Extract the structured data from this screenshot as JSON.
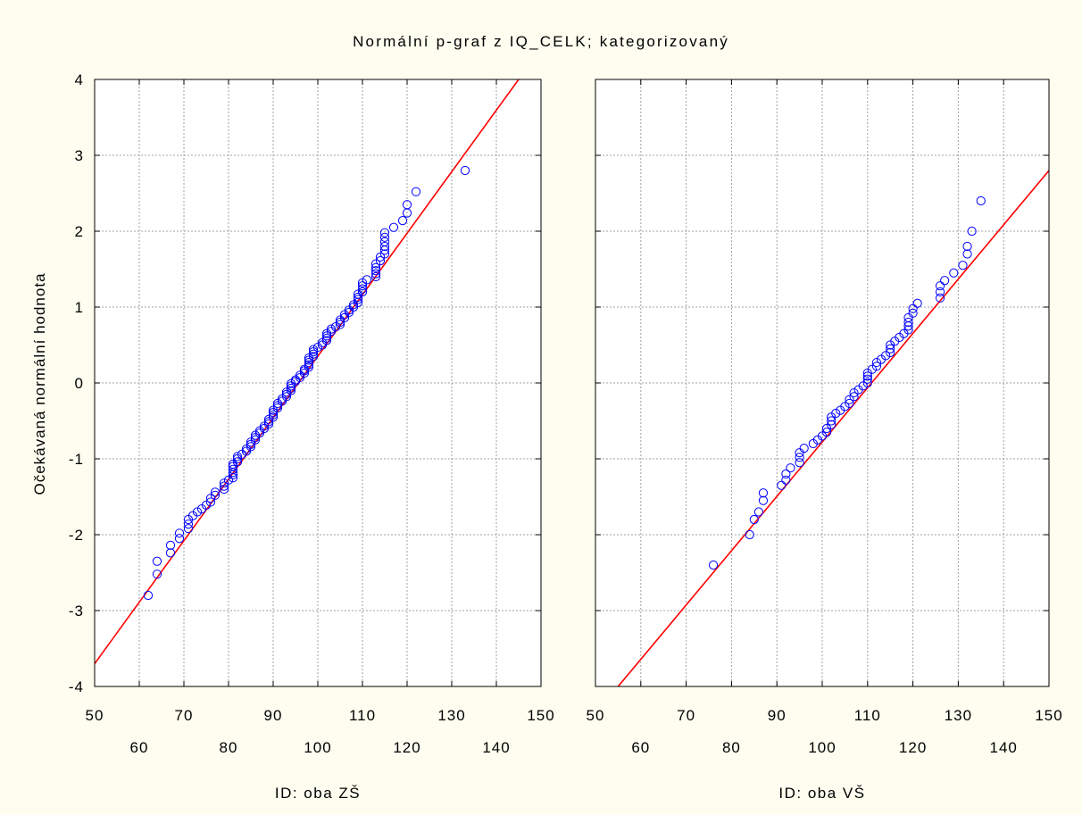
{
  "chart_data": {
    "type": "scatter",
    "title": "Normální p-graf z IQ_CELK; kategorizovaný",
    "ylabel": "Očekávaná normální hodnota",
    "ylim": [
      -4,
      4
    ],
    "y_ticks": [
      "4",
      "3",
      "2",
      "1",
      "0",
      "-1",
      "-2",
      "-3",
      "-4"
    ],
    "x_ticks_top": [
      "50",
      "70",
      "90",
      "110",
      "130",
      "150"
    ],
    "x_ticks_bottom": [
      "60",
      "80",
      "100",
      "120",
      "140"
    ],
    "colors": {
      "points": "#0000ff",
      "fit_line": "#ff0000",
      "grid": "#a0a0a0"
    },
    "grid": true,
    "panels": [
      {
        "xlabel": "ID: oba ZŠ",
        "xlim": [
          50,
          150
        ],
        "fit_line": [
          [
            50,
            -3.7
          ],
          [
            145,
            4.0
          ]
        ],
        "points": [
          [
            62,
            -2.8
          ],
          [
            64,
            -2.52
          ],
          [
            64,
            -2.35
          ],
          [
            67,
            -2.24
          ],
          [
            67,
            -2.14
          ],
          [
            69,
            -2.05
          ],
          [
            69,
            -1.98
          ],
          [
            71,
            -1.92
          ],
          [
            71,
            -1.86
          ],
          [
            71,
            -1.8
          ],
          [
            72,
            -1.75
          ],
          [
            73,
            -1.7
          ],
          [
            74,
            -1.66
          ],
          [
            75,
            -1.61
          ],
          [
            76,
            -1.57
          ],
          [
            76,
            -1.52
          ],
          [
            77,
            -1.48
          ],
          [
            77,
            -1.44
          ],
          [
            79,
            -1.4
          ],
          [
            79,
            -1.36
          ],
          [
            79,
            -1.32
          ],
          [
            80,
            -1.28
          ],
          [
            81,
            -1.25
          ],
          [
            81,
            -1.21
          ],
          [
            81,
            -1.18
          ],
          [
            81,
            -1.14
          ],
          [
            81,
            -1.1
          ],
          [
            81,
            -1.07
          ],
          [
            82,
            -1.04
          ],
          [
            82,
            -1.0
          ],
          [
            82,
            -0.97
          ],
          [
            83,
            -0.94
          ],
          [
            84,
            -0.9
          ],
          [
            84,
            -0.87
          ],
          [
            85,
            -0.84
          ],
          [
            85,
            -0.81
          ],
          [
            85,
            -0.78
          ],
          [
            86,
            -0.75
          ],
          [
            86,
            -0.72
          ],
          [
            86,
            -0.69
          ],
          [
            87,
            -0.66
          ],
          [
            87,
            -0.63
          ],
          [
            88,
            -0.6
          ],
          [
            88,
            -0.57
          ],
          [
            89,
            -0.54
          ],
          [
            89,
            -0.51
          ],
          [
            89,
            -0.48
          ],
          [
            90,
            -0.45
          ],
          [
            90,
            -0.42
          ],
          [
            90,
            -0.39
          ],
          [
            90,
            -0.36
          ],
          [
            91,
            -0.33
          ],
          [
            91,
            -0.3
          ],
          [
            91,
            -0.27
          ],
          [
            92,
            -0.24
          ],
          [
            92,
            -0.21
          ],
          [
            93,
            -0.18
          ],
          [
            93,
            -0.15
          ],
          [
            93,
            -0.12
          ],
          [
            94,
            -0.1
          ],
          [
            94,
            -0.07
          ],
          [
            94,
            -0.04
          ],
          [
            94,
            -0.01
          ],
          [
            95,
            0.02
          ],
          [
            95,
            0.04
          ],
          [
            96,
            0.07
          ],
          [
            96,
            0.1
          ],
          [
            97,
            0.13
          ],
          [
            97,
            0.16
          ],
          [
            97,
            0.18
          ],
          [
            98,
            0.21
          ],
          [
            98,
            0.24
          ],
          [
            98,
            0.27
          ],
          [
            98,
            0.3
          ],
          [
            98,
            0.33
          ],
          [
            99,
            0.35
          ],
          [
            99,
            0.38
          ],
          [
            99,
            0.41
          ],
          [
            99,
            0.44
          ],
          [
            100,
            0.47
          ],
          [
            101,
            0.5
          ],
          [
            101,
            0.53
          ],
          [
            102,
            0.56
          ],
          [
            102,
            0.59
          ],
          [
            102,
            0.62
          ],
          [
            102,
            0.65
          ],
          [
            103,
            0.68
          ],
          [
            103,
            0.71
          ],
          [
            104,
            0.74
          ],
          [
            105,
            0.77
          ],
          [
            105,
            0.8
          ],
          [
            105,
            0.83
          ],
          [
            106,
            0.86
          ],
          [
            106,
            0.9
          ],
          [
            107,
            0.93
          ],
          [
            107,
            0.96
          ],
          [
            108,
            1.0
          ],
          [
            108,
            1.03
          ],
          [
            109,
            1.06
          ],
          [
            109,
            1.1
          ],
          [
            109,
            1.13
          ],
          [
            109,
            1.17
          ],
          [
            110,
            1.2
          ],
          [
            110,
            1.24
          ],
          [
            110,
            1.28
          ],
          [
            110,
            1.32
          ],
          [
            111,
            1.36
          ],
          [
            113,
            1.4
          ],
          [
            113,
            1.44
          ],
          [
            113,
            1.48
          ],
          [
            113,
            1.52
          ],
          [
            113,
            1.57
          ],
          [
            114,
            1.61
          ],
          [
            114,
            1.66
          ],
          [
            115,
            1.7
          ],
          [
            115,
            1.75
          ],
          [
            115,
            1.8
          ],
          [
            115,
            1.86
          ],
          [
            115,
            1.92
          ],
          [
            115,
            1.98
          ],
          [
            117,
            2.05
          ],
          [
            119,
            2.14
          ],
          [
            120,
            2.24
          ],
          [
            120,
            2.35
          ],
          [
            122,
            2.52
          ],
          [
            133,
            2.8
          ]
        ]
      },
      {
        "xlabel": "ID: oba VŠ",
        "xlim": [
          50,
          150
        ],
        "fit_line": [
          [
            55,
            -4.0
          ],
          [
            150,
            2.8
          ]
        ],
        "points": [
          [
            76,
            -2.4
          ],
          [
            84,
            -2.0
          ],
          [
            85,
            -1.8
          ],
          [
            86,
            -1.7
          ],
          [
            87,
            -1.55
          ],
          [
            87,
            -1.45
          ],
          [
            91,
            -1.35
          ],
          [
            92,
            -1.28
          ],
          [
            92,
            -1.2
          ],
          [
            93,
            -1.12
          ],
          [
            95,
            -1.05
          ],
          [
            95,
            -0.98
          ],
          [
            95,
            -0.92
          ],
          [
            96,
            -0.86
          ],
          [
            98,
            -0.8
          ],
          [
            99,
            -0.75
          ],
          [
            100,
            -0.7
          ],
          [
            101,
            -0.65
          ],
          [
            101,
            -0.6
          ],
          [
            102,
            -0.55
          ],
          [
            102,
            -0.5
          ],
          [
            102,
            -0.45
          ],
          [
            103,
            -0.4
          ],
          [
            104,
            -0.36
          ],
          [
            105,
            -0.31
          ],
          [
            106,
            -0.27
          ],
          [
            106,
            -0.22
          ],
          [
            107,
            -0.18
          ],
          [
            107,
            -0.13
          ],
          [
            108,
            -0.09
          ],
          [
            109,
            -0.04
          ],
          [
            110,
            0.0
          ],
          [
            110,
            0.05
          ],
          [
            110,
            0.09
          ],
          [
            110,
            0.13
          ],
          [
            111,
            0.18
          ],
          [
            112,
            0.22
          ],
          [
            112,
            0.27
          ],
          [
            113,
            0.31
          ],
          [
            114,
            0.36
          ],
          [
            115,
            0.4
          ],
          [
            115,
            0.45
          ],
          [
            115,
            0.5
          ],
          [
            116,
            0.55
          ],
          [
            117,
            0.6
          ],
          [
            118,
            0.65
          ],
          [
            119,
            0.7
          ],
          [
            119,
            0.75
          ],
          [
            119,
            0.8
          ],
          [
            119,
            0.86
          ],
          [
            120,
            0.92
          ],
          [
            120,
            0.98
          ],
          [
            121,
            1.05
          ],
          [
            126,
            1.12
          ],
          [
            126,
            1.2
          ],
          [
            126,
            1.28
          ],
          [
            127,
            1.35
          ],
          [
            129,
            1.45
          ],
          [
            131,
            1.55
          ],
          [
            132,
            1.7
          ],
          [
            132,
            1.8
          ],
          [
            133,
            2.0
          ],
          [
            135,
            2.4
          ]
        ]
      }
    ]
  }
}
